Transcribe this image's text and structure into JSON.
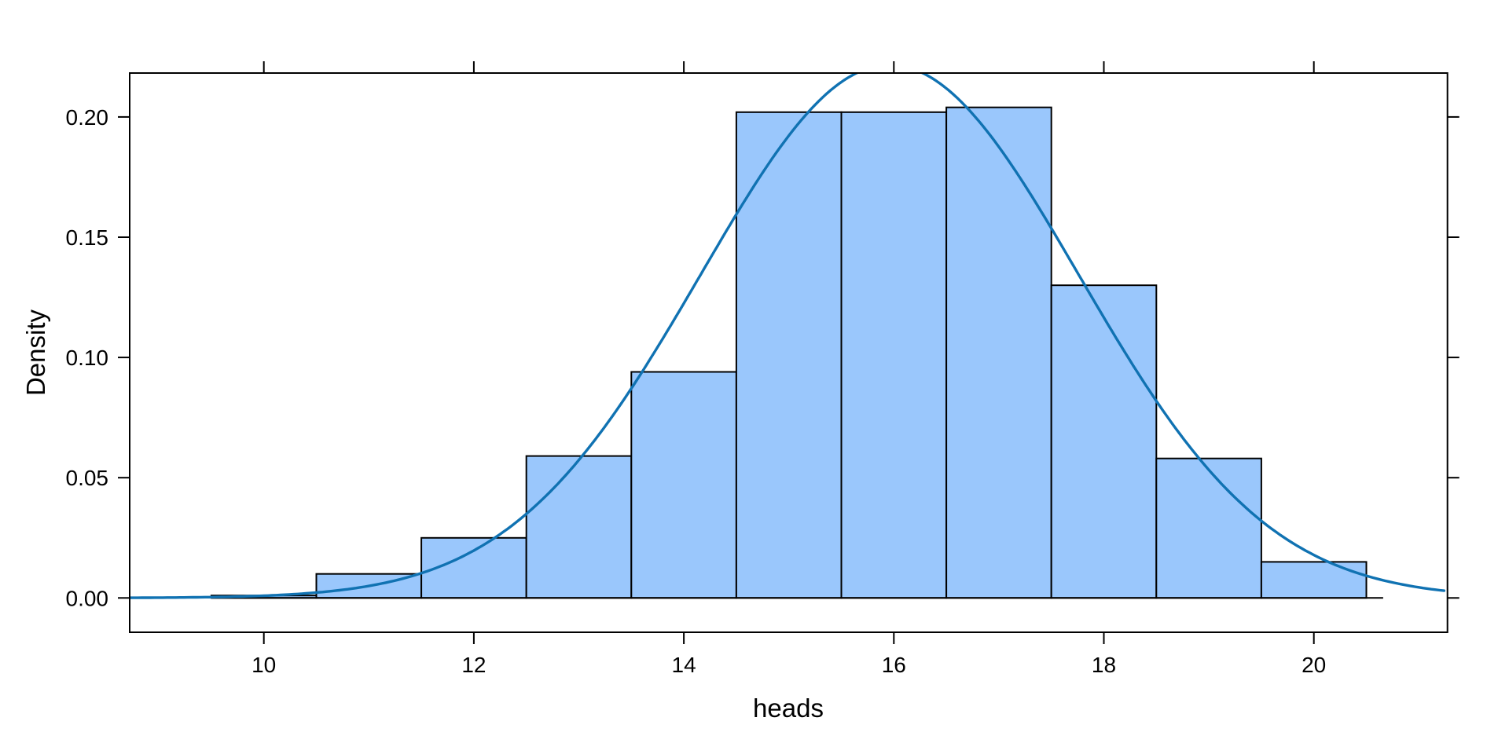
{
  "chart_data": {
    "type": "bar",
    "subtype": "histogram-with-normal-density-overlay",
    "title": "",
    "xlabel": "heads",
    "ylabel": "Density",
    "bin_edges": [
      9.5,
      10.5,
      11.5,
      12.5,
      13.5,
      14.5,
      15.5,
      16.5,
      17.5,
      18.5,
      19.5,
      20.5
    ],
    "bin_width": 1,
    "densities": [
      0.001,
      0.01,
      0.025,
      0.059,
      0.094,
      0.202,
      0.202,
      0.204,
      0.13,
      0.058,
      0.015
    ],
    "x_ticks": [
      "10",
      "12",
      "14",
      "16",
      "18",
      "20"
    ],
    "x_tick_values": [
      10,
      12,
      14,
      16,
      18,
      20
    ],
    "y_ticks": [
      "0.00",
      "0.05",
      "0.10",
      "0.15",
      "0.20"
    ],
    "y_tick_values": [
      0,
      0.05,
      0.1,
      0.15,
      0.2
    ],
    "xlim": [
      8.72,
      21.27
    ],
    "ylim": [
      0,
      0.218
    ],
    "grid": false,
    "legend": false,
    "ticks_mirrored_top_right": true,
    "baseline": {
      "density": 0,
      "x_start": 9.5,
      "x_end": 20.66
    },
    "curve": {
      "shape": "normal-density",
      "mean": 15.96,
      "sd": 1.8,
      "peak_density": 0.222,
      "clipped_at_plot_top": true
    },
    "colors": {
      "background": "#FFFFFF",
      "bar_fill": "#9AC7FC",
      "bar_border": "#000000",
      "curve": "#1072B2",
      "axis": "#000000",
      "text": "#000000"
    }
  }
}
